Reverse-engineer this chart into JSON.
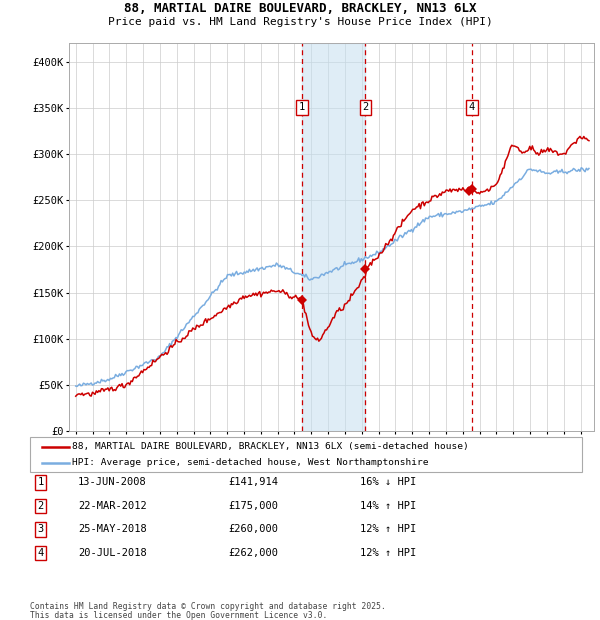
{
  "title1": "88, MARTIAL DAIRE BOULEVARD, BRACKLEY, NN13 6LX",
  "title2": "Price paid vs. HM Land Registry's House Price Index (HPI)",
  "legend_line1": "88, MARTIAL DAIRE BOULEVARD, BRACKLEY, NN13 6LX (semi-detached house)",
  "legend_line2": "HPI: Average price, semi-detached house, West Northamptonshire",
  "footnote1": "Contains HM Land Registry data © Crown copyright and database right 2025.",
  "footnote2": "This data is licensed under the Open Government Licence v3.0.",
  "sale_color": "#cc0000",
  "hpi_color": "#7aade0",
  "background_color": "#ffffff",
  "grid_color": "#cccccc",
  "ylim": [
    0,
    420000
  ],
  "yticks": [
    0,
    50000,
    100000,
    150000,
    200000,
    250000,
    300000,
    350000,
    400000
  ],
  "ytick_labels": [
    "£0",
    "£50K",
    "£100K",
    "£150K",
    "£200K",
    "£250K",
    "£300K",
    "£350K",
    "£400K"
  ],
  "transactions": [
    {
      "num": 1,
      "date": "2008-06-13",
      "price": 141914,
      "x": 2008.45,
      "show_label": true
    },
    {
      "num": 2,
      "date": "2012-03-22",
      "price": 175000,
      "x": 2012.22,
      "show_label": true
    },
    {
      "num": 3,
      "date": "2018-05-25",
      "price": 260000,
      "x": 2018.4,
      "show_label": false
    },
    {
      "num": 4,
      "date": "2018-07-20",
      "price": 262000,
      "x": 2018.55,
      "show_label": true
    }
  ],
  "table_rows": [
    {
      "num": 1,
      "date": "13-JUN-2008",
      "price": "£141,914",
      "hpi": "16% ↓ HPI"
    },
    {
      "num": 2,
      "date": "22-MAR-2012",
      "price": "£175,000",
      "hpi": "14% ↑ HPI"
    },
    {
      "num": 3,
      "date": "25-MAY-2018",
      "price": "£260,000",
      "hpi": "12% ↑ HPI"
    },
    {
      "num": 4,
      "date": "20-JUL-2018",
      "price": "£262,000",
      "hpi": "12% ↑ HPI"
    }
  ],
  "shade_x1": 2008.45,
  "shade_x2": 2012.22,
  "xlim_left": 1994.6,
  "xlim_right": 2025.8
}
